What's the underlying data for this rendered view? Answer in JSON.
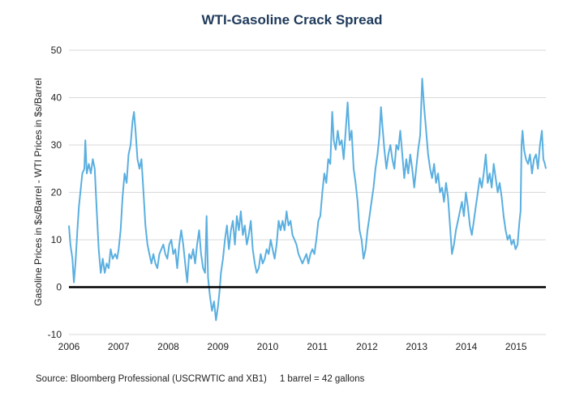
{
  "chart_data": {
    "type": "line",
    "title": "WTI-Gasoline Crack Spread",
    "xlabel": "",
    "ylabel": "Gasoline Prices in $s/Barrel - WTI Prices in $s/Barrel",
    "xlim": [
      2006.0,
      2015.6
    ],
    "ylim": [
      -10,
      50
    ],
    "x_ticks": [
      2006,
      2007,
      2008,
      2009,
      2010,
      2011,
      2012,
      2013,
      2014,
      2015
    ],
    "x_tick_labels": [
      "2006",
      "2007",
      "2008",
      "2009",
      "2010",
      "2011",
      "2012",
      "2013",
      "2014",
      "2015"
    ],
    "y_ticks": [
      -10,
      0,
      10,
      20,
      30,
      40,
      50
    ],
    "y_tick_labels": [
      "-10",
      "0",
      "10",
      "20",
      "30",
      "40",
      "50"
    ],
    "grid": "horizontal",
    "reference_line": 0,
    "series": [
      {
        "name": "WTI-Gasoline Crack Spread",
        "color": "#5aafe0",
        "points": [
          [
            2006.0,
            13
          ],
          [
            2006.03,
            9
          ],
          [
            2006.07,
            6
          ],
          [
            2006.1,
            1
          ],
          [
            2006.13,
            5
          ],
          [
            2006.17,
            12
          ],
          [
            2006.2,
            17
          ],
          [
            2006.24,
            21
          ],
          [
            2006.27,
            24
          ],
          [
            2006.31,
            25
          ],
          [
            2006.33,
            31
          ],
          [
            2006.36,
            24
          ],
          [
            2006.4,
            26
          ],
          [
            2006.44,
            24
          ],
          [
            2006.48,
            27
          ],
          [
            2006.52,
            25
          ],
          [
            2006.56,
            16
          ],
          [
            2006.6,
            8
          ],
          [
            2006.64,
            3
          ],
          [
            2006.68,
            6
          ],
          [
            2006.72,
            3
          ],
          [
            2006.76,
            5
          ],
          [
            2006.8,
            4
          ],
          [
            2006.84,
            8
          ],
          [
            2006.88,
            6
          ],
          [
            2006.93,
            7
          ],
          [
            2006.97,
            6
          ],
          [
            2007.0,
            8
          ],
          [
            2007.04,
            12
          ],
          [
            2007.08,
            19
          ],
          [
            2007.12,
            24
          ],
          [
            2007.16,
            22
          ],
          [
            2007.2,
            28
          ],
          [
            2007.24,
            30
          ],
          [
            2007.28,
            35
          ],
          [
            2007.31,
            37
          ],
          [
            2007.34,
            33
          ],
          [
            2007.38,
            27
          ],
          [
            2007.42,
            25
          ],
          [
            2007.46,
            27
          ],
          [
            2007.5,
            20
          ],
          [
            2007.54,
            13
          ],
          [
            2007.58,
            9
          ],
          [
            2007.62,
            7
          ],
          [
            2007.66,
            5
          ],
          [
            2007.7,
            7
          ],
          [
            2007.74,
            5
          ],
          [
            2007.78,
            4
          ],
          [
            2007.82,
            7
          ],
          [
            2007.86,
            8
          ],
          [
            2007.9,
            9
          ],
          [
            2007.94,
            7
          ],
          [
            2007.98,
            6
          ],
          [
            2008.02,
            9
          ],
          [
            2008.06,
            10
          ],
          [
            2008.1,
            7
          ],
          [
            2008.14,
            8
          ],
          [
            2008.18,
            4
          ],
          [
            2008.22,
            9
          ],
          [
            2008.26,
            12
          ],
          [
            2008.3,
            9
          ],
          [
            2008.34,
            5
          ],
          [
            2008.38,
            1
          ],
          [
            2008.42,
            7
          ],
          [
            2008.46,
            6
          ],
          [
            2008.5,
            8
          ],
          [
            2008.54,
            5
          ],
          [
            2008.58,
            9
          ],
          [
            2008.62,
            12
          ],
          [
            2008.66,
            7
          ],
          [
            2008.7,
            4
          ],
          [
            2008.74,
            3
          ],
          [
            2008.77,
            15
          ],
          [
            2008.8,
            2
          ],
          [
            2008.84,
            -2
          ],
          [
            2008.88,
            -5
          ],
          [
            2008.92,
            -3
          ],
          [
            2008.96,
            -7
          ],
          [
            2009.0,
            -4
          ],
          [
            2009.03,
            -1
          ],
          [
            2009.06,
            3
          ],
          [
            2009.1,
            6
          ],
          [
            2009.14,
            10
          ],
          [
            2009.18,
            13
          ],
          [
            2009.22,
            8
          ],
          [
            2009.26,
            12
          ],
          [
            2009.3,
            14
          ],
          [
            2009.34,
            9
          ],
          [
            2009.38,
            15
          ],
          [
            2009.42,
            12
          ],
          [
            2009.46,
            16
          ],
          [
            2009.5,
            11
          ],
          [
            2009.54,
            13
          ],
          [
            2009.58,
            9
          ],
          [
            2009.62,
            11
          ],
          [
            2009.66,
            14
          ],
          [
            2009.7,
            8
          ],
          [
            2009.74,
            5
          ],
          [
            2009.78,
            3
          ],
          [
            2009.82,
            4
          ],
          [
            2009.86,
            7
          ],
          [
            2009.9,
            5
          ],
          [
            2009.94,
            6
          ],
          [
            2009.98,
            8
          ],
          [
            2010.02,
            7
          ],
          [
            2010.06,
            10
          ],
          [
            2010.1,
            8
          ],
          [
            2010.14,
            6
          ],
          [
            2010.18,
            9
          ],
          [
            2010.22,
            14
          ],
          [
            2010.26,
            12
          ],
          [
            2010.3,
            14
          ],
          [
            2010.34,
            12
          ],
          [
            2010.38,
            16
          ],
          [
            2010.42,
            13
          ],
          [
            2010.46,
            14
          ],
          [
            2010.5,
            11
          ],
          [
            2010.54,
            10
          ],
          [
            2010.58,
            9
          ],
          [
            2010.62,
            7
          ],
          [
            2010.66,
            6
          ],
          [
            2010.7,
            5
          ],
          [
            2010.74,
            6
          ],
          [
            2010.78,
            7
          ],
          [
            2010.82,
            5
          ],
          [
            2010.86,
            7
          ],
          [
            2010.9,
            8
          ],
          [
            2010.94,
            7
          ],
          [
            2010.98,
            10
          ],
          [
            2011.02,
            14
          ],
          [
            2011.06,
            15
          ],
          [
            2011.1,
            20
          ],
          [
            2011.14,
            24
          ],
          [
            2011.18,
            22
          ],
          [
            2011.22,
            27
          ],
          [
            2011.26,
            26
          ],
          [
            2011.3,
            37
          ],
          [
            2011.33,
            31
          ],
          [
            2011.37,
            29
          ],
          [
            2011.41,
            33
          ],
          [
            2011.45,
            30
          ],
          [
            2011.49,
            31
          ],
          [
            2011.53,
            27
          ],
          [
            2011.57,
            33
          ],
          [
            2011.61,
            39
          ],
          [
            2011.65,
            31
          ],
          [
            2011.69,
            33
          ],
          [
            2011.73,
            25
          ],
          [
            2011.77,
            22
          ],
          [
            2011.81,
            18
          ],
          [
            2011.85,
            12
          ],
          [
            2011.89,
            10
          ],
          [
            2011.93,
            6
          ],
          [
            2011.97,
            8
          ],
          [
            2012.01,
            12
          ],
          [
            2012.05,
            15
          ],
          [
            2012.09,
            18
          ],
          [
            2012.13,
            21
          ],
          [
            2012.17,
            25
          ],
          [
            2012.21,
            28
          ],
          [
            2012.25,
            32
          ],
          [
            2012.28,
            38
          ],
          [
            2012.31,
            34
          ],
          [
            2012.35,
            29
          ],
          [
            2012.39,
            25
          ],
          [
            2012.43,
            28
          ],
          [
            2012.47,
            30
          ],
          [
            2012.51,
            27
          ],
          [
            2012.55,
            25
          ],
          [
            2012.59,
            30
          ],
          [
            2012.63,
            29
          ],
          [
            2012.67,
            33
          ],
          [
            2012.71,
            28
          ],
          [
            2012.75,
            23
          ],
          [
            2012.79,
            27
          ],
          [
            2012.83,
            24
          ],
          [
            2012.87,
            28
          ],
          [
            2012.91,
            25
          ],
          [
            2012.95,
            21
          ],
          [
            2012.99,
            25
          ],
          [
            2013.03,
            29
          ],
          [
            2013.07,
            32
          ],
          [
            2013.11,
            44
          ],
          [
            2013.15,
            38
          ],
          [
            2013.19,
            33
          ],
          [
            2013.23,
            28
          ],
          [
            2013.27,
            25
          ],
          [
            2013.31,
            23
          ],
          [
            2013.35,
            26
          ],
          [
            2013.39,
            22
          ],
          [
            2013.43,
            24
          ],
          [
            2013.47,
            20
          ],
          [
            2013.51,
            21
          ],
          [
            2013.55,
            18
          ],
          [
            2013.59,
            22
          ],
          [
            2013.63,
            19
          ],
          [
            2013.67,
            13
          ],
          [
            2013.71,
            7
          ],
          [
            2013.75,
            9
          ],
          [
            2013.79,
            12
          ],
          [
            2013.83,
            14
          ],
          [
            2013.87,
            16
          ],
          [
            2013.91,
            18
          ],
          [
            2013.95,
            15
          ],
          [
            2013.99,
            20
          ],
          [
            2014.03,
            17
          ],
          [
            2014.07,
            13
          ],
          [
            2014.11,
            11
          ],
          [
            2014.15,
            14
          ],
          [
            2014.19,
            17
          ],
          [
            2014.23,
            20
          ],
          [
            2014.27,
            23
          ],
          [
            2014.31,
            21
          ],
          [
            2014.35,
            24
          ],
          [
            2014.39,
            28
          ],
          [
            2014.43,
            22
          ],
          [
            2014.47,
            24
          ],
          [
            2014.51,
            21
          ],
          [
            2014.55,
            26
          ],
          [
            2014.59,
            23
          ],
          [
            2014.63,
            20
          ],
          [
            2014.67,
            22
          ],
          [
            2014.71,
            19
          ],
          [
            2014.75,
            15
          ],
          [
            2014.79,
            12
          ],
          [
            2014.83,
            10
          ],
          [
            2014.87,
            11
          ],
          [
            2014.91,
            9
          ],
          [
            2014.95,
            10
          ],
          [
            2014.99,
            8
          ],
          [
            2015.03,
            9
          ],
          [
            2015.07,
            14
          ],
          [
            2015.09,
            16
          ],
          [
            2015.11,
            30
          ],
          [
            2015.13,
            33
          ],
          [
            2015.16,
            29
          ],
          [
            2015.2,
            27
          ],
          [
            2015.24,
            26
          ],
          [
            2015.28,
            28
          ],
          [
            2015.32,
            24
          ],
          [
            2015.36,
            27
          ],
          [
            2015.4,
            28
          ],
          [
            2015.44,
            25
          ],
          [
            2015.48,
            30
          ],
          [
            2015.52,
            33
          ],
          [
            2015.55,
            27
          ],
          [
            2015.58,
            26
          ],
          [
            2015.6,
            25
          ]
        ]
      }
    ],
    "source_note": "Source: Bloomberg Professional (USCRWTIC and XB1)     1 barrel = 42 gallons"
  }
}
